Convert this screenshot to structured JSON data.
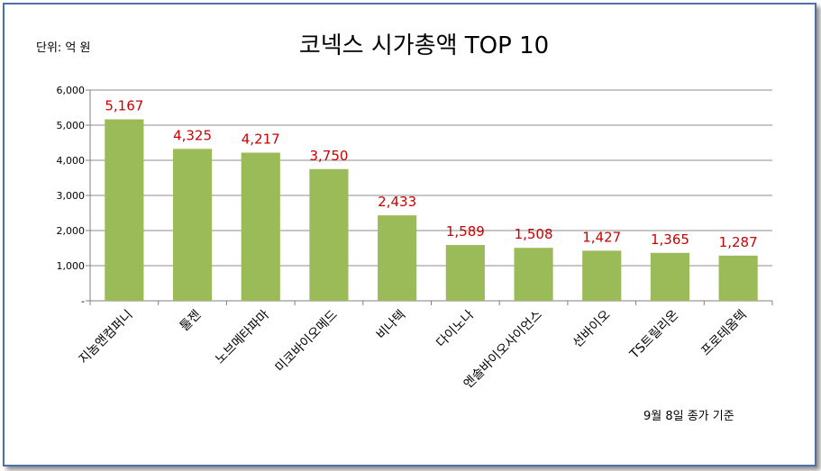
{
  "chart_data": {
    "type": "bar",
    "title": "코넥스 시가총액 TOP 10",
    "unit_label": "단위: 억 원",
    "footnote": "9월 8일 종가 기준",
    "categories": [
      "지놈앤컴퍼니",
      "툴젠",
      "노브메타파마",
      "미코바이오메드",
      "비나텍",
      "다이노나",
      "엔솔바이오사이언스",
      "선바이오",
      "TS트릴리온",
      "프로테옴텍"
    ],
    "values": [
      5167,
      4325,
      4217,
      3750,
      2433,
      1589,
      1508,
      1427,
      1365,
      1287
    ],
    "data_labels": [
      "5,167",
      "4,325",
      "4,217",
      "3,750",
      "2,433",
      "1,589",
      "1,508",
      "1,427",
      "1,365",
      "1,287"
    ],
    "yticks": [
      0,
      1000,
      2000,
      3000,
      4000,
      5000,
      6000
    ],
    "ytick_labels": [
      "-",
      "1,000",
      "2,000",
      "3,000",
      "4,000",
      "5,000",
      "6,000"
    ],
    "ylim": [
      0,
      6000
    ],
    "grid": true,
    "legend": "none",
    "colors": {
      "bar": "#9bbb59",
      "data_label": "#cc0000",
      "grid": "#8c8c8c",
      "frame": "#4f6fa8"
    }
  }
}
